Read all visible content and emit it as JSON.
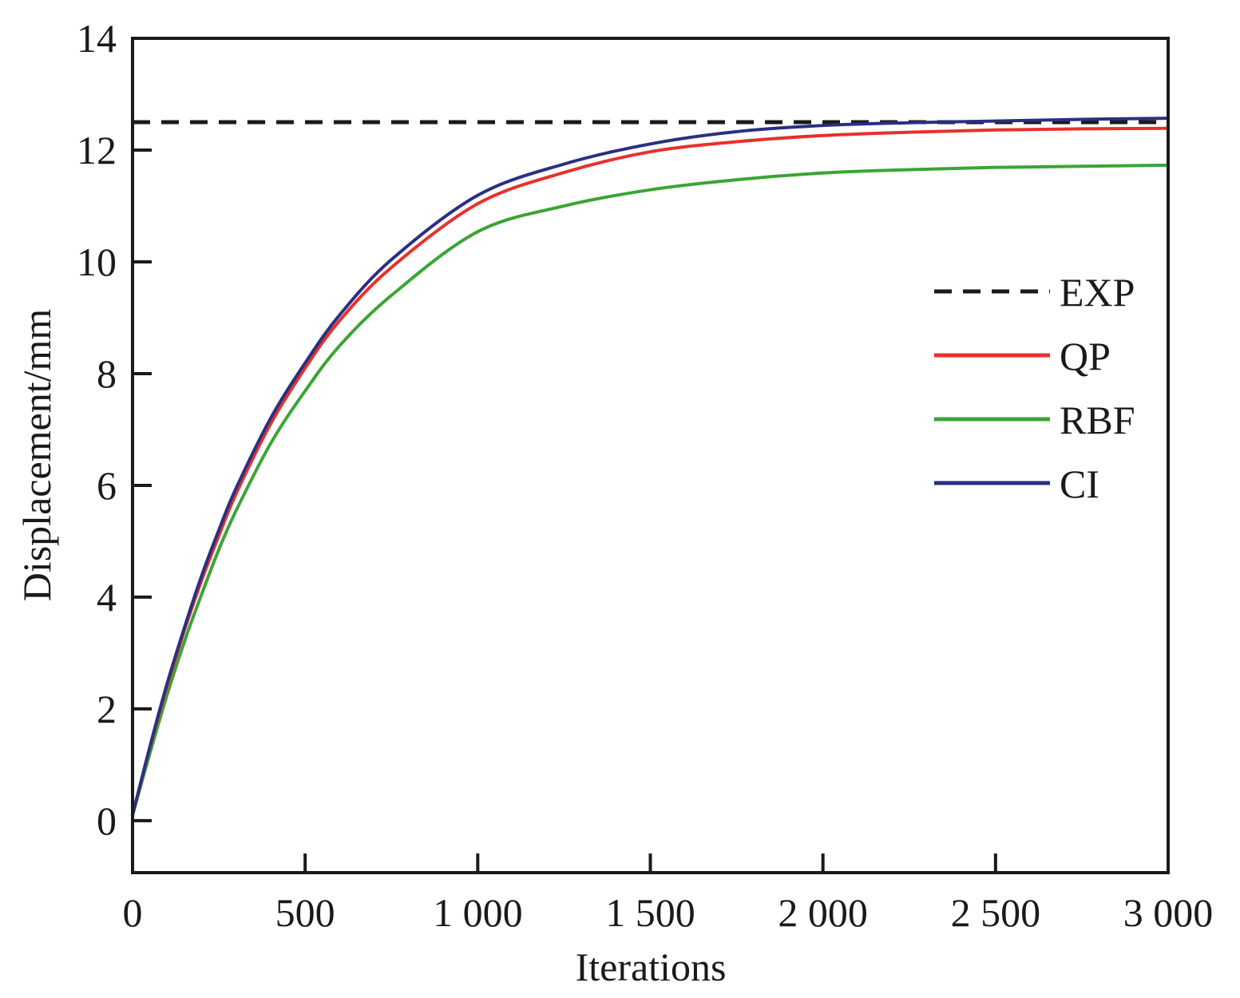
{
  "chart_data": {
    "type": "line",
    "title": "",
    "xlabel": "Iterations",
    "ylabel": "Displacement/mm",
    "xlim": [
      0,
      3000
    ],
    "ylim": [
      -0.93,
      14
    ],
    "xticks": [
      0,
      500,
      1000,
      1500,
      2000,
      2500,
      3000
    ],
    "xtick_labels": [
      "0",
      "500",
      "1 000",
      "1 500",
      "2 000",
      "2 500",
      "3 000"
    ],
    "yticks": [
      0,
      2,
      4,
      6,
      8,
      10,
      12,
      14
    ],
    "ytick_labels": [
      "0",
      "2",
      "4",
      "6",
      "8",
      "10",
      "12",
      "14"
    ],
    "grid": false,
    "legend_position": "center-right",
    "x": [
      0,
      50,
      100,
      150,
      200,
      250,
      300,
      400,
      500,
      600,
      750,
      1000,
      1250,
      1500,
      1750,
      2000,
      2250,
      2500,
      2750,
      3000
    ],
    "series": [
      {
        "name": "EXP",
        "color": "#1a1a1a",
        "dash": true,
        "values": [
          12.5,
          12.5,
          12.5,
          12.5,
          12.5,
          12.5,
          12.5,
          12.5,
          12.5,
          12.5,
          12.5,
          12.5,
          12.5,
          12.5,
          12.5,
          12.5,
          12.5,
          12.5,
          12.5,
          12.5
        ]
      },
      {
        "name": "QP",
        "color": "#e8302a",
        "dash": false,
        "values": [
          0.1,
          1.3,
          2.4,
          3.4,
          4.3,
          5.1,
          5.85,
          7.1,
          8.1,
          8.95,
          9.9,
          11.04,
          11.6,
          11.97,
          12.15,
          12.26,
          12.32,
          12.36,
          12.38,
          12.39
        ]
      },
      {
        "name": "RBF",
        "color": "#3aa535",
        "dash": false,
        "values": [
          0.1,
          1.2,
          2.25,
          3.2,
          4.05,
          4.85,
          5.55,
          6.75,
          7.69,
          8.5,
          9.4,
          10.54,
          11.0,
          11.29,
          11.47,
          11.59,
          11.65,
          11.69,
          11.71,
          11.73
        ]
      },
      {
        "name": "CI",
        "color": "#2b2f82",
        "dash": false,
        "values": [
          0.1,
          1.32,
          2.45,
          3.45,
          4.38,
          5.2,
          5.95,
          7.2,
          8.19,
          9.05,
          10.04,
          11.19,
          11.75,
          12.11,
          12.33,
          12.44,
          12.49,
          12.52,
          12.55,
          12.57
        ]
      }
    ]
  }
}
